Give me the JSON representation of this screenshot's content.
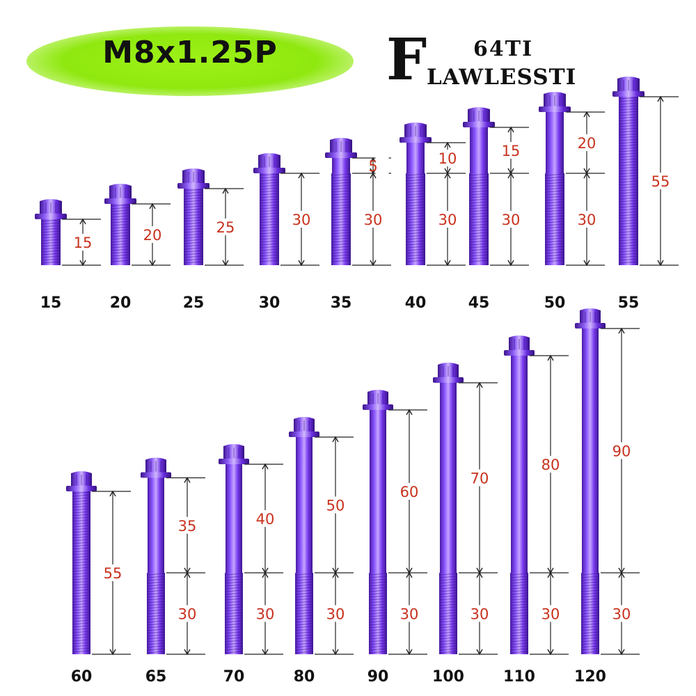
{
  "title": "M8x1.25P",
  "brand": {
    "initial": "F",
    "line1": "64TI",
    "line2": "LAWLESSTI"
  },
  "colors": {
    "badge": "#9ef218",
    "bolt_light": "#b58cff",
    "bolt_mid": "#7a3cf0",
    "bolt_dark": "#4a1aa8",
    "dimension_text": "#c8321e",
    "line": "#222222"
  },
  "rows": [
    {
      "bolts": [
        {
          "size": "15",
          "unthreaded": null,
          "threaded": "15"
        },
        {
          "size": "20",
          "unthreaded": null,
          "threaded": "20"
        },
        {
          "size": "25",
          "unthreaded": null,
          "threaded": "25"
        },
        {
          "size": "30",
          "unthreaded": null,
          "threaded": "30"
        },
        {
          "size": "35",
          "unthreaded": "5",
          "threaded": "30"
        },
        {
          "size": "40",
          "unthreaded": "10",
          "threaded": "30"
        },
        {
          "size": "45",
          "unthreaded": "15",
          "threaded": "30"
        },
        {
          "size": "50",
          "unthreaded": "20",
          "threaded": "30"
        },
        {
          "size": "55",
          "unthreaded": null,
          "threaded": "55"
        }
      ]
    },
    {
      "bolts": [
        {
          "size": "60",
          "unthreaded": null,
          "threaded": "55"
        },
        {
          "size": "65",
          "unthreaded": "35",
          "threaded": "30"
        },
        {
          "size": "70",
          "unthreaded": "40",
          "threaded": "30"
        },
        {
          "size": "80",
          "unthreaded": "50",
          "threaded": "30"
        },
        {
          "size": "90",
          "unthreaded": "60",
          "threaded": "30"
        },
        {
          "size": "100",
          "unthreaded": "70",
          "threaded": "30"
        },
        {
          "size": "110",
          "unthreaded": "80",
          "threaded": "30"
        },
        {
          "size": "120",
          "unthreaded": "90",
          "threaded": "30"
        }
      ]
    }
  ]
}
